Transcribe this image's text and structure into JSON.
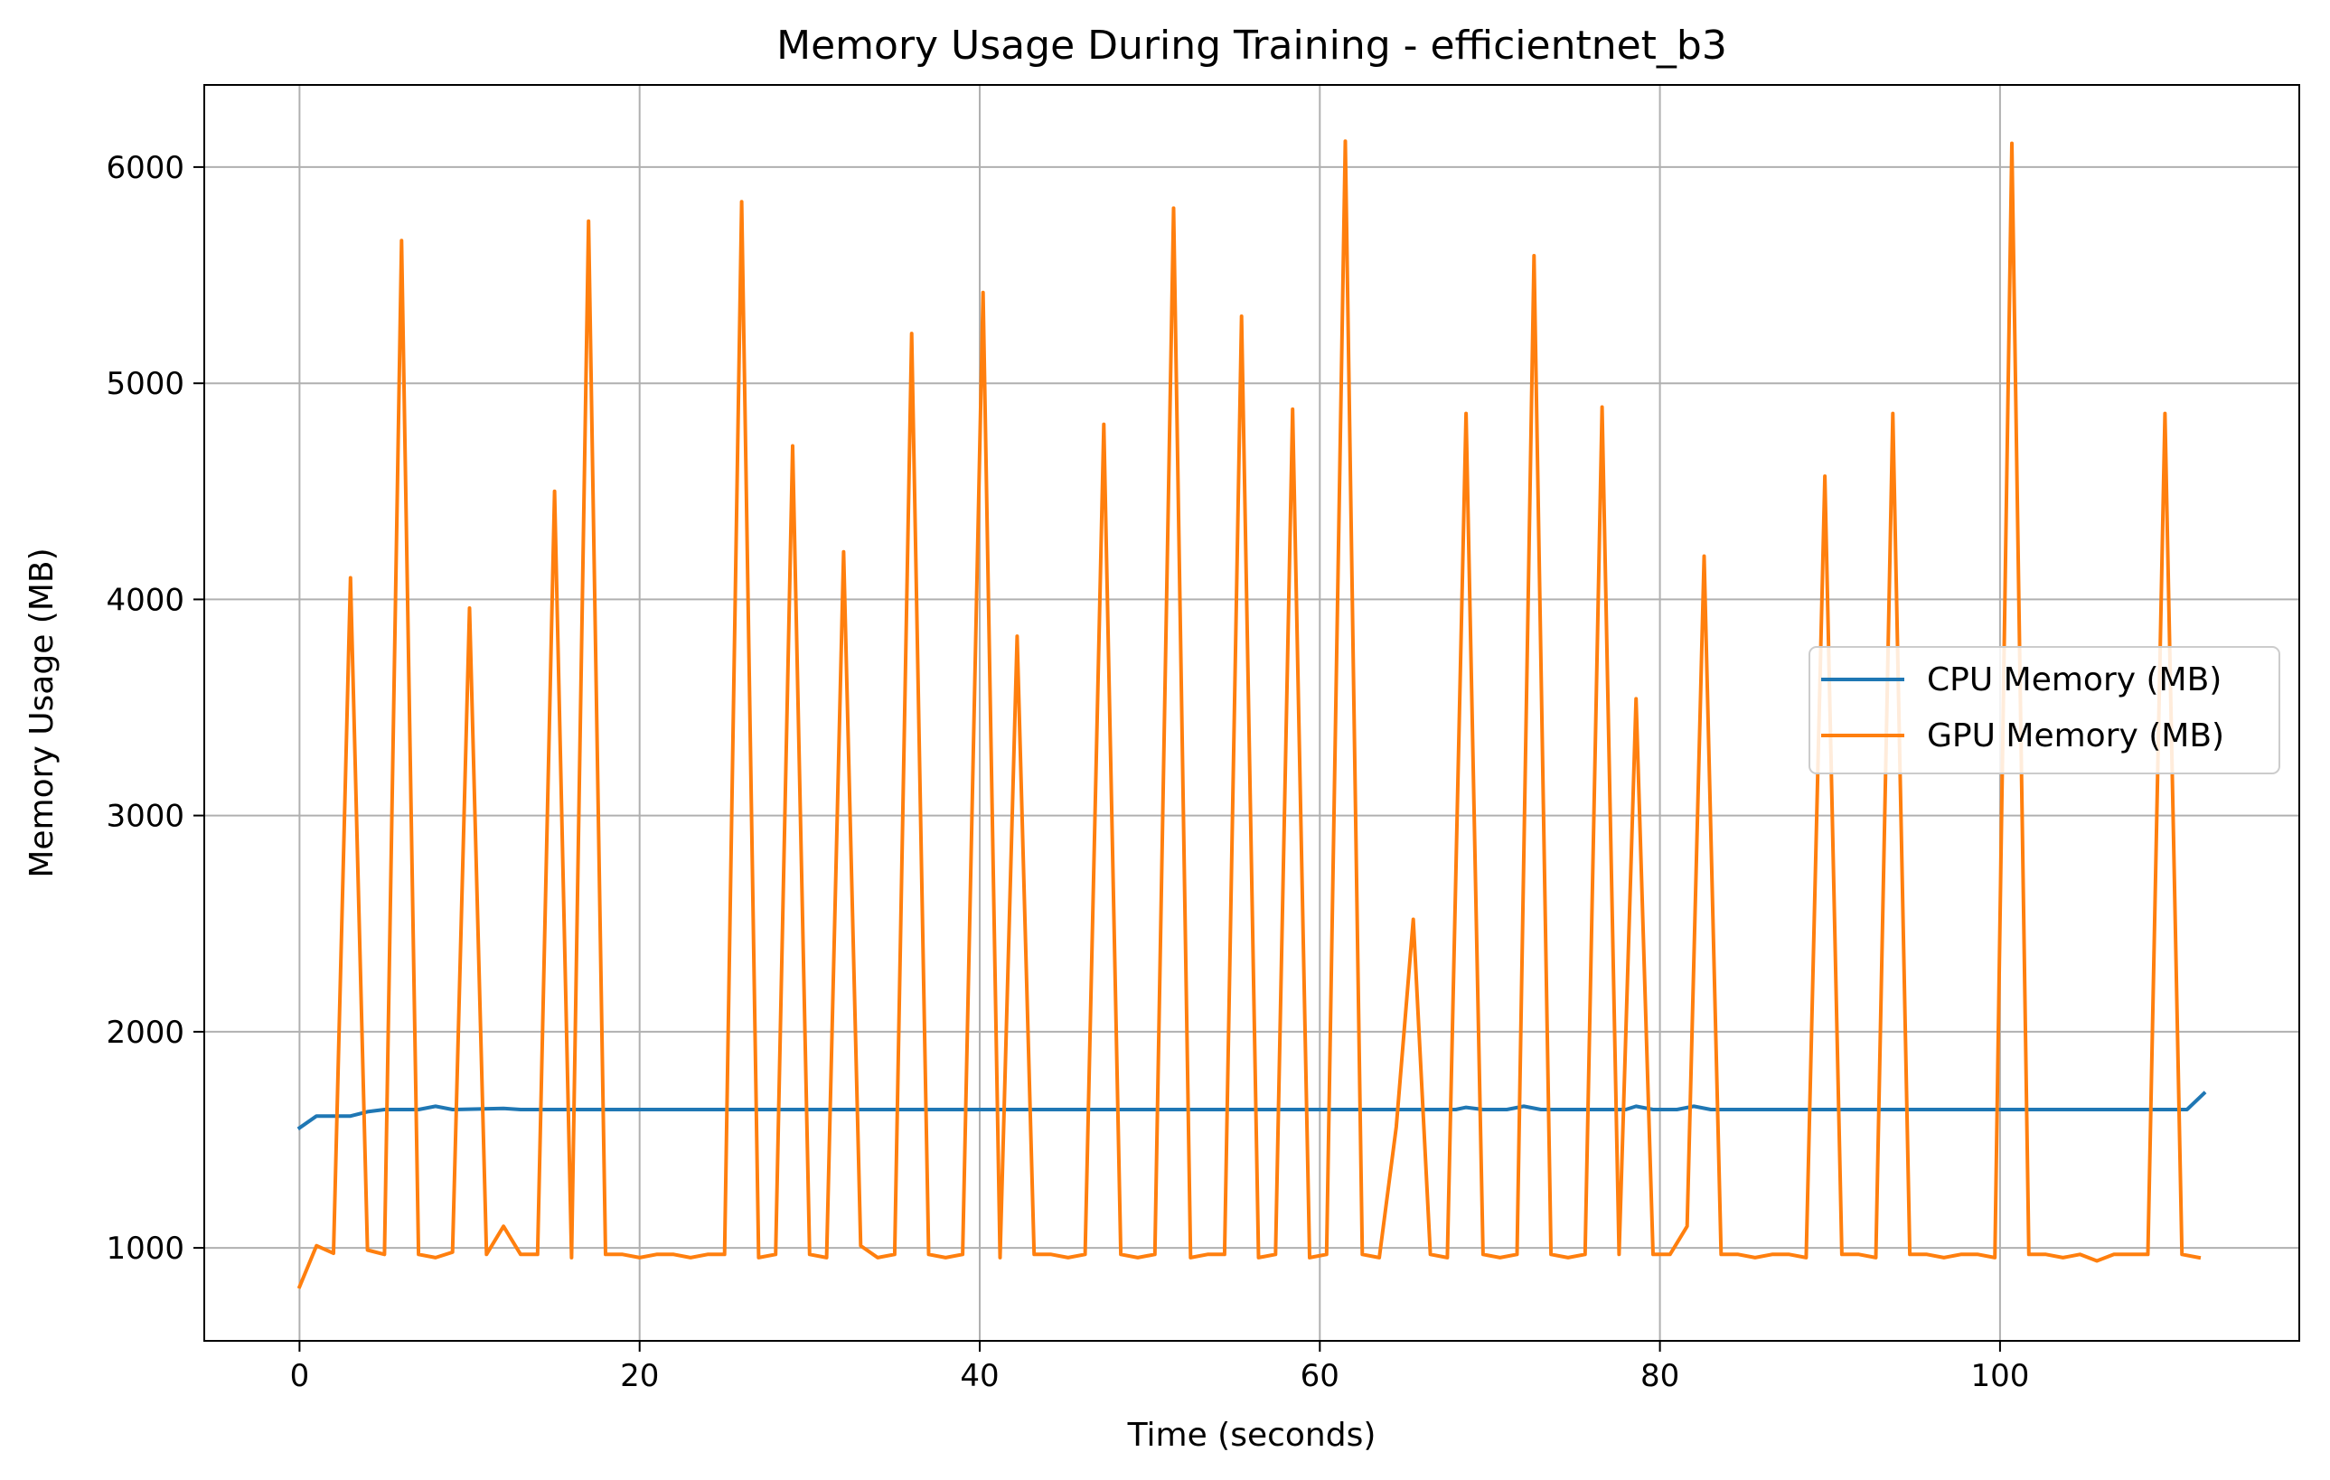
{
  "chart_data": {
    "type": "line",
    "title": "Memory Usage During Training - efficientnet_b3",
    "xlabel": "Time (seconds)",
    "ylabel": "Memory Usage (MB)",
    "xlim": [
      -5.6,
      117.6
    ],
    "ylim": [
      570,
      6380
    ],
    "xticks": [
      0,
      20,
      40,
      60,
      80,
      100
    ],
    "yticks": [
      1000,
      2000,
      3000,
      4000,
      5000,
      6000
    ],
    "grid": true,
    "legend_position": "center-right",
    "series": [
      {
        "name": "CPU Memory (MB)",
        "color": "#1f77b4",
        "points": [
          [
            0,
            1555
          ],
          [
            1,
            1610
          ],
          [
            3,
            1610
          ],
          [
            4,
            1630
          ],
          [
            5,
            1640
          ],
          [
            7,
            1640
          ],
          [
            8,
            1655
          ],
          [
            9,
            1640
          ],
          [
            12,
            1645
          ],
          [
            13,
            1640
          ],
          [
            60,
            1640
          ],
          [
            66,
            1640
          ],
          [
            68,
            1640
          ],
          [
            68.6,
            1650
          ],
          [
            69.6,
            1640
          ],
          [
            71,
            1640
          ],
          [
            72,
            1655
          ],
          [
            73,
            1640
          ],
          [
            78,
            1640
          ],
          [
            78.6,
            1655
          ],
          [
            79.6,
            1640
          ],
          [
            81,
            1640
          ],
          [
            82,
            1655
          ],
          [
            83,
            1640
          ],
          [
            99,
            1640
          ],
          [
            111,
            1640
          ],
          [
            112,
            1715
          ]
        ]
      },
      {
        "name": "GPU Memory (MB)",
        "color": "#ff7f0e",
        "points": [
          [
            0,
            820
          ],
          [
            1,
            1010
          ],
          [
            2,
            975
          ],
          [
            3,
            4100
          ],
          [
            4,
            990
          ],
          [
            5,
            970
          ],
          [
            6,
            5660
          ],
          [
            7,
            970
          ],
          [
            8,
            955
          ],
          [
            9,
            980
          ],
          [
            10,
            3960
          ],
          [
            11,
            970
          ],
          [
            12,
            1100
          ],
          [
            13,
            970
          ],
          [
            14,
            970
          ],
          [
            15,
            4500
          ],
          [
            16,
            955
          ],
          [
            17,
            5750
          ],
          [
            18,
            970
          ],
          [
            19,
            970
          ],
          [
            20,
            955
          ],
          [
            21,
            970
          ],
          [
            22,
            970
          ],
          [
            23,
            955
          ],
          [
            24,
            970
          ],
          [
            25,
            970
          ],
          [
            26,
            5840
          ],
          [
            27,
            955
          ],
          [
            28,
            970
          ],
          [
            29,
            4710
          ],
          [
            30,
            970
          ],
          [
            31,
            955
          ],
          [
            32,
            4220
          ],
          [
            33,
            1010
          ],
          [
            34,
            955
          ],
          [
            35,
            970
          ],
          [
            36,
            5230
          ],
          [
            37,
            970
          ],
          [
            38,
            955
          ],
          [
            39,
            970
          ],
          [
            40.2,
            5420
          ],
          [
            41.2,
            955
          ],
          [
            42.2,
            3830
          ],
          [
            43.2,
            970
          ],
          [
            44.2,
            970
          ],
          [
            45.2,
            955
          ],
          [
            46.2,
            970
          ],
          [
            47.3,
            4810
          ],
          [
            48.3,
            970
          ],
          [
            49.3,
            955
          ],
          [
            50.3,
            970
          ],
          [
            51.4,
            5810
          ],
          [
            52.4,
            955
          ],
          [
            53.4,
            970
          ],
          [
            54.4,
            970
          ],
          [
            55.4,
            5310
          ],
          [
            56.4,
            955
          ],
          [
            57.4,
            970
          ],
          [
            58.4,
            4880
          ],
          [
            59.4,
            955
          ],
          [
            60.4,
            970
          ],
          [
            61.5,
            6120
          ],
          [
            62.5,
            970
          ],
          [
            63.5,
            955
          ],
          [
            64.5,
            1560
          ],
          [
            65.5,
            2520
          ],
          [
            66.5,
            970
          ],
          [
            67.5,
            955
          ],
          [
            68.6,
            4860
          ],
          [
            69.6,
            970
          ],
          [
            70.6,
            955
          ],
          [
            71.6,
            970
          ],
          [
            72.6,
            5590
          ],
          [
            73.6,
            970
          ],
          [
            74.6,
            955
          ],
          [
            75.6,
            970
          ],
          [
            76.6,
            4890
          ],
          [
            77.6,
            970
          ],
          [
            78.6,
            3540
          ],
          [
            79.6,
            970
          ],
          [
            80.6,
            970
          ],
          [
            81.6,
            1100
          ],
          [
            82.6,
            4200
          ],
          [
            83.6,
            970
          ],
          [
            84.6,
            970
          ],
          [
            85.6,
            955
          ],
          [
            86.6,
            970
          ],
          [
            87.6,
            970
          ],
          [
            88.6,
            955
          ],
          [
            89.7,
            4570
          ],
          [
            90.7,
            970
          ],
          [
            91.7,
            970
          ],
          [
            92.7,
            955
          ],
          [
            93.7,
            4860
          ],
          [
            94.7,
            970
          ],
          [
            95.7,
            970
          ],
          [
            96.7,
            955
          ],
          [
            97.7,
            970
          ],
          [
            98.7,
            970
          ],
          [
            99.7,
            955
          ],
          [
            100.7,
            6110
          ],
          [
            101.7,
            970
          ],
          [
            102.7,
            970
          ],
          [
            103.7,
            955
          ],
          [
            104.7,
            970
          ],
          [
            105.7,
            940
          ],
          [
            106.7,
            970
          ],
          [
            107.7,
            970
          ],
          [
            108.7,
            970
          ],
          [
            109.7,
            4860
          ],
          [
            110.7,
            970
          ],
          [
            111.7,
            955
          ]
        ]
      }
    ]
  }
}
